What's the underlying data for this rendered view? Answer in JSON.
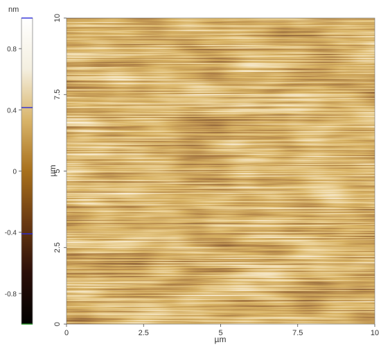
{
  "colorbar": {
    "unit": "nm",
    "range_nm": [
      -1.0,
      1.0
    ],
    "colormap": [
      "#000000",
      "#2a0e08",
      "#6a3a12",
      "#a8701c",
      "#d8b46a",
      "#f4efe0",
      "#ffffff"
    ],
    "ticks": [
      {
        "value": 0.8,
        "label": "0.8"
      },
      {
        "value": 0.4,
        "label": "0.4"
      },
      {
        "value": 0,
        "label": "0"
      },
      {
        "value": -0.4,
        "label": "-0.4"
      },
      {
        "value": -0.8,
        "label": "-0.8"
      }
    ],
    "markers": [
      {
        "value": 1.0,
        "color": "#2b2bd8"
      },
      {
        "value": 0.415,
        "color": "#2b2bd8"
      },
      {
        "value": -0.41,
        "color": "#2b2bd8"
      },
      {
        "value": -1.0,
        "color": "#2e9e2e"
      }
    ]
  },
  "image": {
    "x_axis": {
      "label": "µm",
      "range": [
        0,
        10
      ],
      "ticks": [
        "0",
        "2.5",
        "5",
        "7.5",
        "10"
      ],
      "tick_values": [
        0,
        2.5,
        5,
        7.5,
        10
      ]
    },
    "y_axis": {
      "label": "µm",
      "range": [
        0,
        10
      ],
      "ticks": [
        "0",
        "2.5",
        "5",
        "7.5",
        "10"
      ],
      "tick_values": [
        0,
        2.5,
        5,
        7.5,
        10
      ]
    }
  }
}
